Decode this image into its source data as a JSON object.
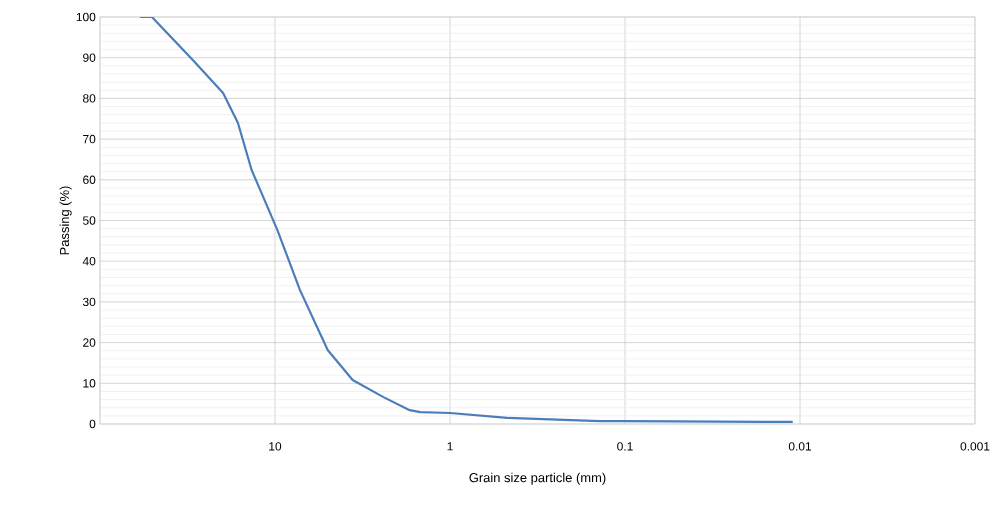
{
  "chart_data": {
    "type": "line",
    "xlabel": "Grain size particle (mm)",
    "ylabel": "Passing (%)",
    "log": "x",
    "xlim": [
      100,
      0.001
    ],
    "xticks": [
      {
        "value": 100,
        "label": null
      },
      10,
      1,
      0.1,
      0.01,
      0.001
    ],
    "ylim": [
      0,
      100
    ],
    "yticks": [
      0,
      10,
      20,
      30,
      40,
      50,
      60,
      70,
      80,
      90,
      100
    ],
    "grid": true,
    "marker": "none",
    "line_style": "solid",
    "series": [
      {
        "color": "#4a7ebb",
        "x": [
          59,
          50.5,
          29.4,
          19.8,
          16.3,
          13.6,
          9.7,
          7.2,
          5.0,
          3.6,
          2.4,
          1.7,
          1.48,
          1.0,
          0.47,
          0.14,
          0.1,
          0.011
        ],
        "values": [
          100,
          100,
          89.4,
          81.3,
          74,
          62.4,
          47.7,
          32.9,
          18.2,
          10.8,
          6.6,
          3.4,
          2.9,
          2.7,
          1.5,
          0.7,
          0.7,
          0.5
        ]
      }
    ]
  }
}
